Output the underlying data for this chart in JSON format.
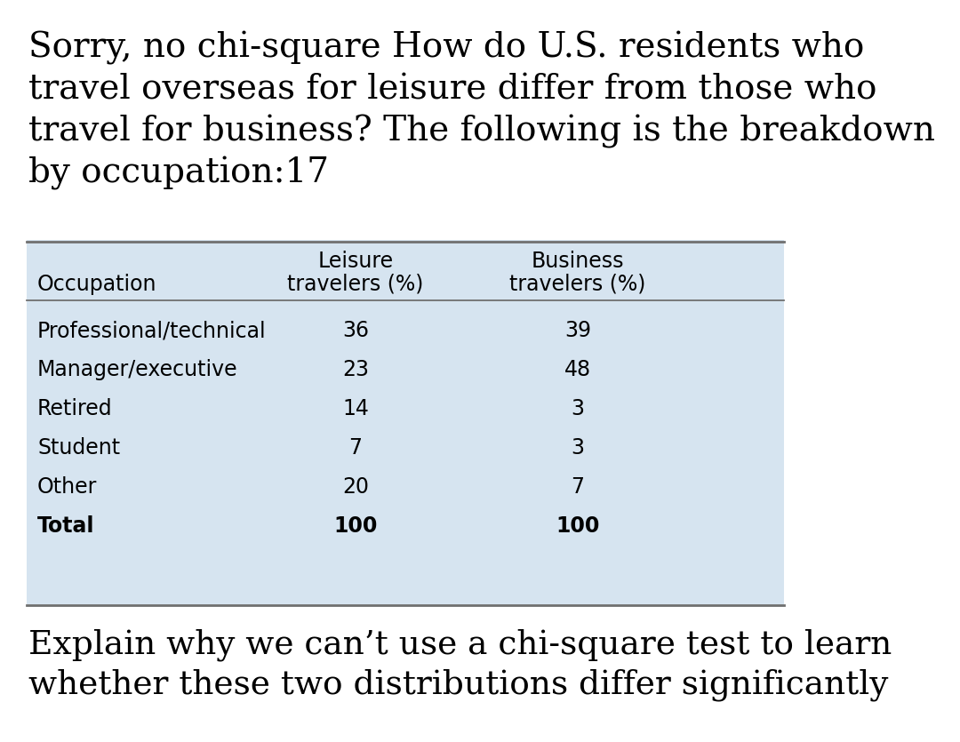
{
  "header_text": "Sorry, no chi-square How do U.S. residents who\ntravel overseas for leisure differ from those who\ntravel for business? The following is the breakdown\nby occupation:17",
  "footer_text": "Explain why we can’t use a chi-square test to learn\nwhether these two distributions differ significantly",
  "table": {
    "col1_header": "Occupation",
    "col2_header_line1": "Leisure",
    "col2_header_line2": "travelers (%)",
    "col3_header_line1": "Business",
    "col3_header_line2": "travelers (%)",
    "rows": [
      [
        "Professional/technical",
        "36",
        "39"
      ],
      [
        "Manager/executive",
        "23",
        "48"
      ],
      [
        "Retired",
        "14",
        "3"
      ],
      [
        "Student",
        "7",
        "3"
      ],
      [
        "Other",
        "20",
        "7"
      ],
      [
        "Total",
        "100",
        "100"
      ]
    ]
  },
  "bg_color": "#ffffff",
  "table_bg_color": "#d6e4f0",
  "header_fontsize": 28,
  "footer_fontsize": 27,
  "table_header_fontsize": 17,
  "table_data_fontsize": 17,
  "text_color": "#000000",
  "table_border_color": "#707070"
}
